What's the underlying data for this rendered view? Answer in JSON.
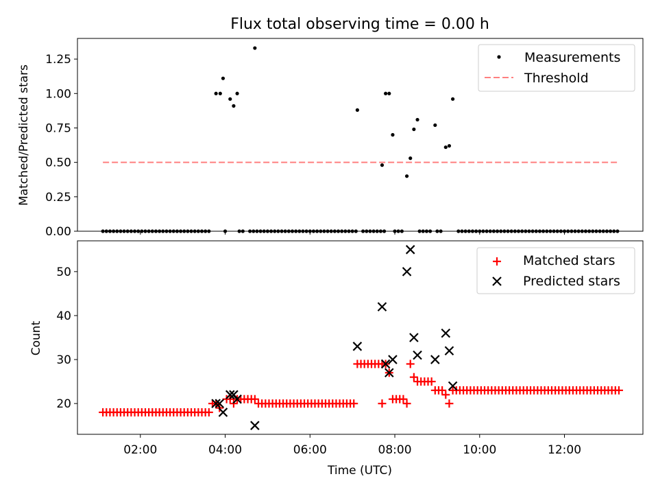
{
  "title": "Flux total observing time = 0.00 h",
  "top_panel": {
    "ylabel": "Matched/Predicted stars",
    "legend": {
      "measurements": "Measurements",
      "threshold": "Threshold"
    }
  },
  "bottom_panel": {
    "ylabel": "Count",
    "xlabel": "Time (UTC)",
    "legend": {
      "matched": "Matched stars",
      "predicted": "Predicted stars"
    }
  },
  "colors": {
    "measurements": "#000000",
    "threshold": "#ff7f7f",
    "matched": "#ff0000",
    "predicted": "#000000"
  },
  "chart_data": [
    {
      "type": "scatter",
      "title": "Flux total observing time = 0.00 h",
      "ylabel": "Matched/Predicted stars",
      "xlim": [
        "00:31",
        "13:51"
      ],
      "ylim": [
        0,
        1.4
      ],
      "yticks": [
        0.0,
        0.25,
        0.5,
        0.75,
        1.0,
        1.25
      ],
      "legend_position": "top-right",
      "series": [
        {
          "name": "Measurements",
          "marker": "dot",
          "zero_points": [
            "01:07",
            "01:12",
            "01:17",
            "01:22",
            "01:27",
            "01:32",
            "01:37",
            "01:42",
            "01:47",
            "01:52",
            "01:57",
            "02:02",
            "02:07",
            "02:12",
            "02:17",
            "02:22",
            "02:27",
            "02:32",
            "02:37",
            "02:42",
            "02:47",
            "02:52",
            "02:57",
            "03:02",
            "03:07",
            "03:12",
            "03:17",
            "03:22",
            "03:27",
            "03:32",
            "03:37",
            "04:00",
            "04:20",
            "04:25",
            "04:35",
            "04:40",
            "04:45",
            "04:50",
            "04:55",
            "05:00",
            "05:05",
            "05:10",
            "05:15",
            "05:20",
            "05:25",
            "05:30",
            "05:35",
            "05:40",
            "05:45",
            "05:50",
            "05:55",
            "06:00",
            "06:05",
            "06:10",
            "06:15",
            "06:20",
            "06:25",
            "06:30",
            "06:35",
            "06:40",
            "06:45",
            "06:50",
            "06:55",
            "07:00",
            "07:05",
            "07:15",
            "07:20",
            "07:25",
            "07:30",
            "07:35",
            "07:40",
            "07:45",
            "08:00",
            "08:05",
            "08:10",
            "08:35",
            "08:40",
            "08:45",
            "08:50",
            "09:00",
            "09:05",
            "09:30",
            "09:35",
            "09:40",
            "09:45",
            "09:50",
            "09:55",
            "10:00",
            "10:05",
            "10:10",
            "10:15",
            "10:20",
            "10:25",
            "10:30",
            "10:35",
            "10:40",
            "10:45",
            "10:50",
            "10:55",
            "11:00",
            "11:05",
            "11:10",
            "11:15",
            "11:20",
            "11:25",
            "11:30",
            "11:35",
            "11:40",
            "11:45",
            "11:50",
            "11:55",
            "12:00",
            "12:05",
            "12:10",
            "12:15",
            "12:20",
            "12:25",
            "12:30",
            "12:35",
            "12:40",
            "12:45",
            "12:50",
            "12:55",
            "13:00",
            "13:05",
            "13:10",
            "13:15"
          ],
          "points": [
            {
              "x": "03:47",
              "y": 1.0
            },
            {
              "x": "03:53",
              "y": 1.0
            },
            {
              "x": "03:57",
              "y": 1.11
            },
            {
              "x": "04:07",
              "y": 0.96
            },
            {
              "x": "04:12",
              "y": 0.91
            },
            {
              "x": "04:17",
              "y": 1.0
            },
            {
              "x": "04:42",
              "y": 1.33
            },
            {
              "x": "07:07",
              "y": 0.88
            },
            {
              "x": "07:42",
              "y": 0.48
            },
            {
              "x": "07:47",
              "y": 1.0
            },
            {
              "x": "07:52",
              "y": 1.0
            },
            {
              "x": "07:57",
              "y": 0.7
            },
            {
              "x": "08:17",
              "y": 0.4
            },
            {
              "x": "08:22",
              "y": 0.53
            },
            {
              "x": "08:27",
              "y": 0.74
            },
            {
              "x": "08:32",
              "y": 0.81
            },
            {
              "x": "08:57",
              "y": 0.77
            },
            {
              "x": "09:12",
              "y": 0.61
            },
            {
              "x": "09:17",
              "y": 0.62
            },
            {
              "x": "09:22",
              "y": 0.96
            }
          ]
        },
        {
          "name": "Threshold",
          "style": "dashed-line",
          "x": [
            "01:07",
            "13:17"
          ],
          "y": [
            0.5,
            0.5
          ]
        }
      ]
    },
    {
      "type": "scatter",
      "xlabel": "Time (UTC)",
      "ylabel": "Count",
      "xlim": [
        "00:31",
        "13:51"
      ],
      "ylim": [
        13.0,
        57.0
      ],
      "yticks": [
        20,
        30,
        40,
        50
      ],
      "xticks": [
        "02:00",
        "04:00",
        "06:00",
        "08:00",
        "10:00",
        "12:00"
      ],
      "legend_position": "top-right",
      "series": [
        {
          "name": "Matched stars",
          "marker": "plus",
          "runs": [
            {
              "start": "01:07",
              "end": "03:37",
              "y": 18
            },
            {
              "start": "04:17",
              "end": "04:42",
              "y": 21
            },
            {
              "start": "04:47",
              "end": "07:02",
              "y": 20
            },
            {
              "start": "07:07",
              "end": "07:47",
              "y": 29
            },
            {
              "start": "07:57",
              "end": "08:12",
              "y": 21
            },
            {
              "start": "08:37",
              "end": "08:52",
              "y": 25
            },
            {
              "start": "09:22",
              "end": "13:17",
              "y": 23
            }
          ],
          "points": [
            {
              "x": "03:42",
              "y": 20
            },
            {
              "x": "03:47",
              "y": 20
            },
            {
              "x": "03:52",
              "y": 19
            },
            {
              "x": "04:02",
              "y": 21
            },
            {
              "x": "04:07",
              "y": 21
            },
            {
              "x": "04:12",
              "y": 20
            },
            {
              "x": "07:42",
              "y": 20
            },
            {
              "x": "07:52",
              "y": 27
            },
            {
              "x": "08:17",
              "y": 20
            },
            {
              "x": "08:22",
              "y": 29
            },
            {
              "x": "08:27",
              "y": 26
            },
            {
              "x": "08:32",
              "y": 25
            },
            {
              "x": "08:57",
              "y": 23
            },
            {
              "x": "09:02",
              "y": 23
            },
            {
              "x": "09:07",
              "y": 23
            },
            {
              "x": "09:12",
              "y": 22
            },
            {
              "x": "09:17",
              "y": 20
            }
          ]
        },
        {
          "name": "Predicted stars",
          "marker": "x",
          "points": [
            {
              "x": "03:47",
              "y": 20
            },
            {
              "x": "03:52",
              "y": 20
            },
            {
              "x": "03:57",
              "y": 18
            },
            {
              "x": "04:07",
              "y": 22
            },
            {
              "x": "04:12",
              "y": 22
            },
            {
              "x": "04:17",
              "y": 21
            },
            {
              "x": "04:42",
              "y": 15
            },
            {
              "x": "07:07",
              "y": 33
            },
            {
              "x": "07:42",
              "y": 42
            },
            {
              "x": "07:47",
              "y": 29
            },
            {
              "x": "07:52",
              "y": 27
            },
            {
              "x": "07:57",
              "y": 30
            },
            {
              "x": "08:17",
              "y": 50
            },
            {
              "x": "08:22",
              "y": 55
            },
            {
              "x": "08:27",
              "y": 35
            },
            {
              "x": "08:32",
              "y": 31
            },
            {
              "x": "08:57",
              "y": 30
            },
            {
              "x": "09:12",
              "y": 36
            },
            {
              "x": "09:17",
              "y": 32
            },
            {
              "x": "09:22",
              "y": 24
            }
          ]
        }
      ]
    }
  ]
}
